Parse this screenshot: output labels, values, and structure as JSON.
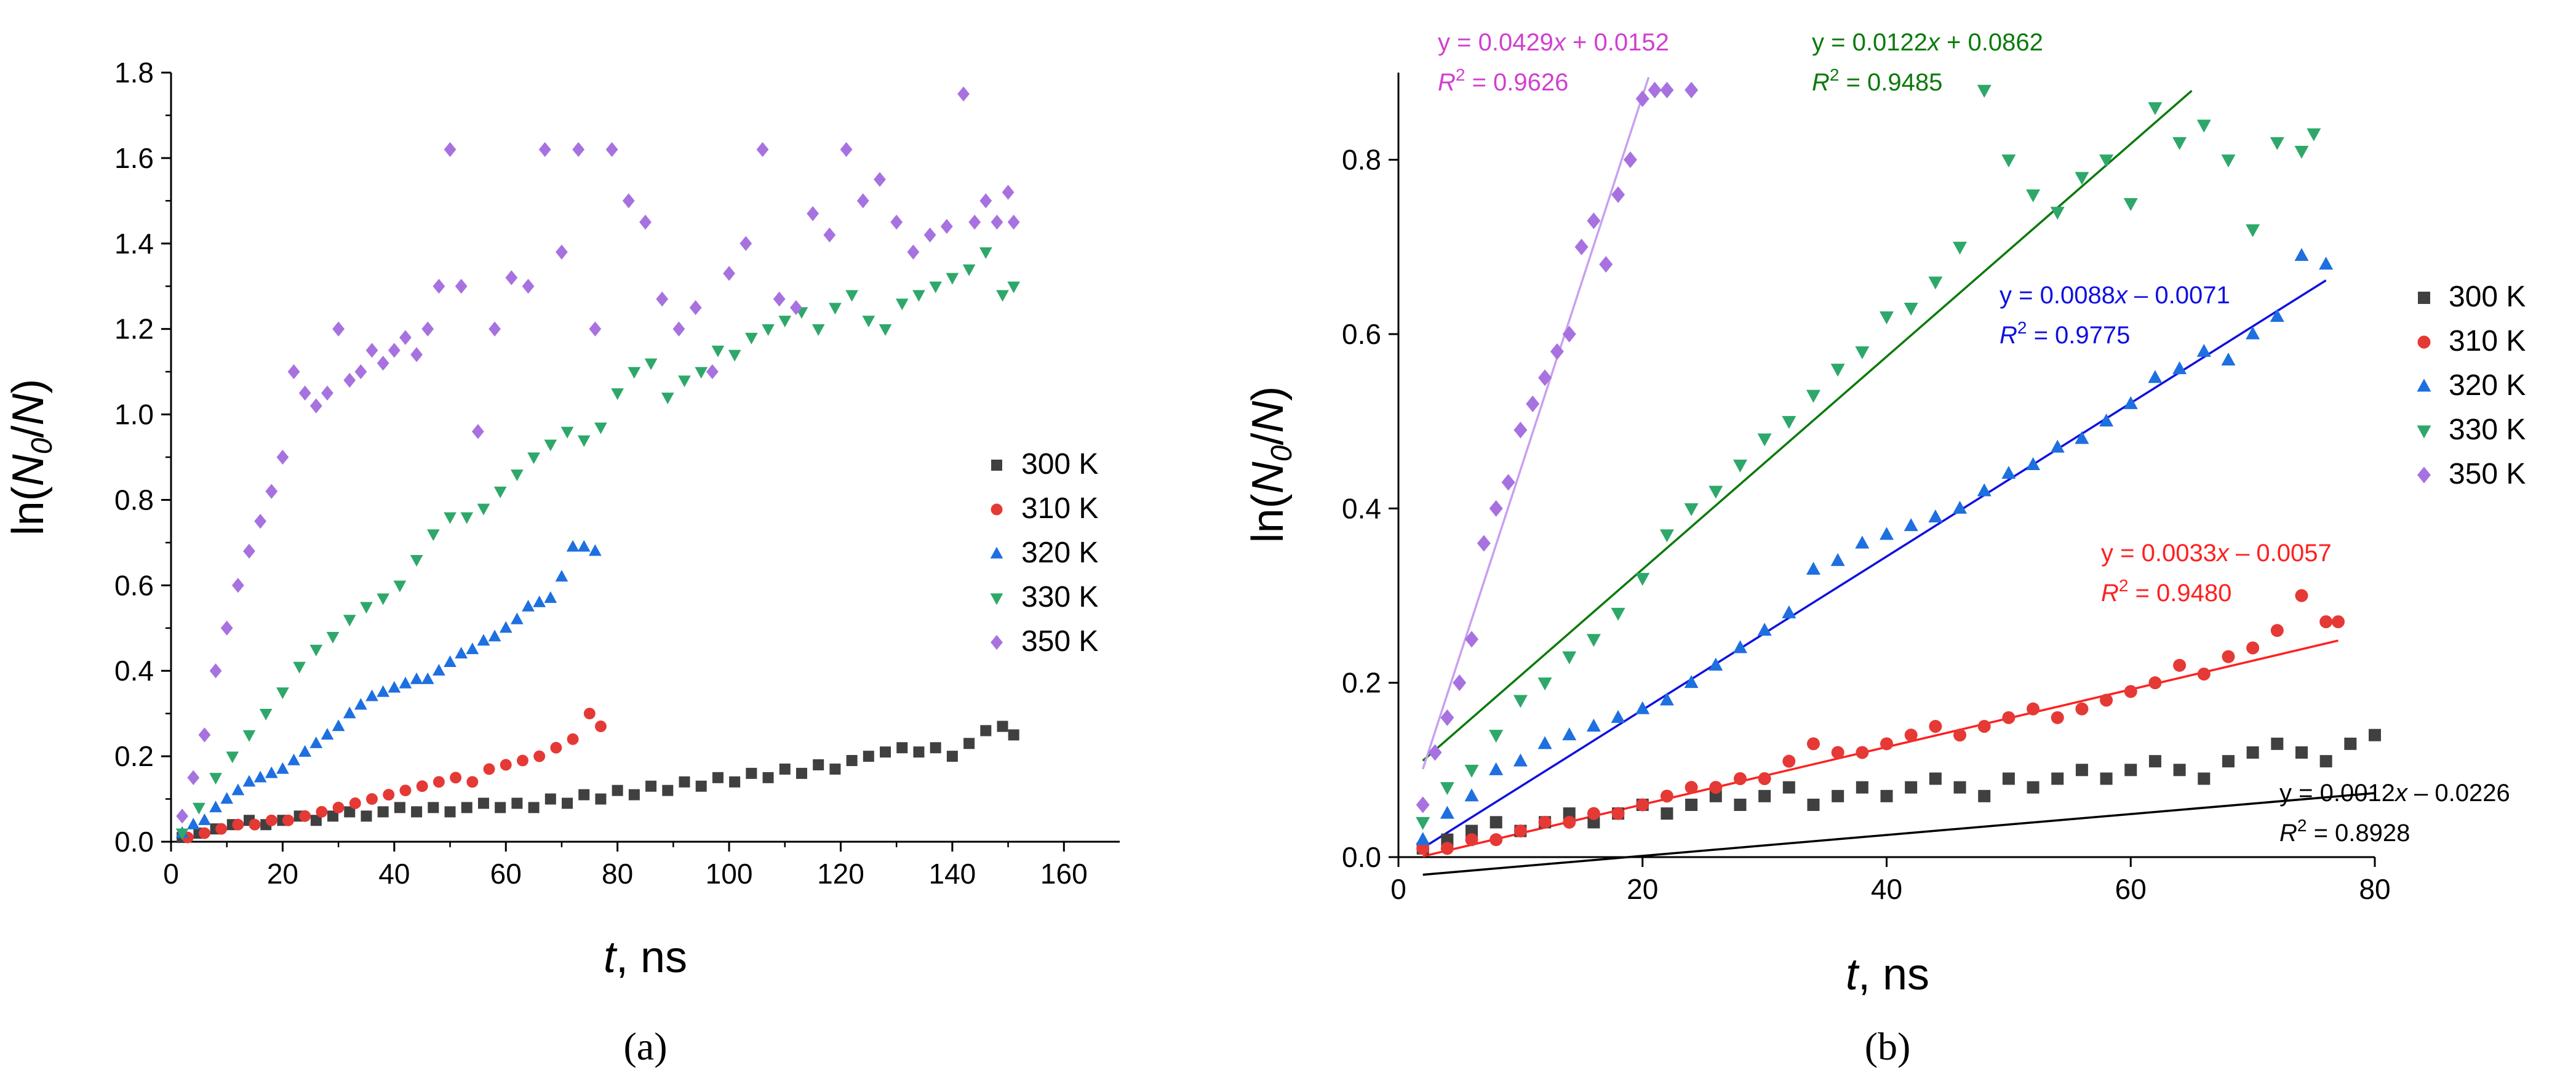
{
  "colors": {
    "300 K": "#404040",
    "310 K": "#e53935",
    "320 K": "#1e6fe0",
    "330 K": "#2ea86a",
    "350 K": "#a772e0",
    "fit_300": "#000000",
    "fit_310": "#ff2020",
    "fit_320": "#1010e0",
    "fit_330": "#0a7a0a",
    "fit_350": "#c8a0f0",
    "eq_300": "#000000",
    "eq_310": "#ff2020",
    "eq_320": "#1010e0",
    "eq_330": "#0a7a0a",
    "eq_350": "#d040d0"
  },
  "chart_data": [
    {
      "type": "scatter",
      "panel_label": "(a)",
      "xlabel_italic": "t",
      "xlabel_rest": ", ns",
      "ylabel": "ln(N0/N)",
      "ylabel_parts": [
        "ln(",
        "N",
        "0",
        "/",
        "N",
        ")"
      ],
      "xlim": [
        0,
        170
      ],
      "ylim": [
        0,
        1.8
      ],
      "xticks": [
        "0",
        "20",
        "40",
        "60",
        "80",
        "100",
        "120",
        "140",
        "160"
      ],
      "yticks": [
        "0.0",
        "0.2",
        "0.4",
        "0.6",
        "0.8",
        "1.0",
        "1.2",
        "1.4",
        "1.6",
        "1.8"
      ],
      "legend": [
        "300 K",
        "310 K",
        "320 K",
        "330 K",
        "350 K"
      ],
      "series": [
        {
          "name": "300 K",
          "marker": "square",
          "x": [
            2,
            5,
            8,
            11,
            14,
            17,
            20,
            23,
            26,
            29,
            32,
            35,
            38,
            41,
            44,
            47,
            50,
            53,
            56,
            59,
            62,
            65,
            68,
            71,
            74,
            77,
            80,
            83,
            86,
            89,
            92,
            95,
            98,
            101,
            104,
            107,
            110,
            113,
            116,
            119,
            122,
            125,
            128,
            131,
            134,
            137,
            140,
            143,
            146,
            149,
            151
          ],
          "y": [
            0.01,
            0.02,
            0.03,
            0.04,
            0.05,
            0.04,
            0.05,
            0.06,
            0.05,
            0.06,
            0.07,
            0.06,
            0.07,
            0.08,
            0.07,
            0.08,
            0.07,
            0.08,
            0.09,
            0.08,
            0.09,
            0.08,
            0.1,
            0.09,
            0.11,
            0.1,
            0.12,
            0.11,
            0.13,
            0.12,
            0.14,
            0.13,
            0.15,
            0.14,
            0.16,
            0.15,
            0.17,
            0.16,
            0.18,
            0.17,
            0.19,
            0.2,
            0.21,
            0.22,
            0.21,
            0.22,
            0.2,
            0.23,
            0.26,
            0.27,
            0.25
          ]
        },
        {
          "name": "310 K",
          "marker": "circle",
          "x": [
            3,
            6,
            9,
            12,
            15,
            18,
            21,
            24,
            27,
            30,
            33,
            36,
            39,
            42,
            45,
            48,
            51,
            54,
            57,
            60,
            63,
            66,
            69,
            72,
            75,
            77
          ],
          "y": [
            0.01,
            0.02,
            0.03,
            0.04,
            0.04,
            0.05,
            0.05,
            0.06,
            0.07,
            0.08,
            0.09,
            0.1,
            0.11,
            0.12,
            0.13,
            0.14,
            0.15,
            0.14,
            0.17,
            0.18,
            0.19,
            0.2,
            0.22,
            0.24,
            0.3,
            0.27
          ]
        },
        {
          "name": "320 K",
          "marker": "triangle-up",
          "x": [
            2,
            4,
            6,
            8,
            10,
            12,
            14,
            16,
            18,
            20,
            22,
            24,
            26,
            28,
            30,
            32,
            34,
            36,
            38,
            40,
            42,
            44,
            46,
            48,
            50,
            52,
            54,
            56,
            58,
            60,
            62,
            64,
            66,
            68,
            70,
            72,
            74,
            76
          ],
          "y": [
            0.02,
            0.04,
            0.05,
            0.08,
            0.1,
            0.12,
            0.14,
            0.15,
            0.16,
            0.17,
            0.19,
            0.21,
            0.23,
            0.25,
            0.27,
            0.3,
            0.32,
            0.34,
            0.35,
            0.36,
            0.37,
            0.38,
            0.38,
            0.4,
            0.42,
            0.44,
            0.45,
            0.47,
            0.48,
            0.5,
            0.52,
            0.55,
            0.56,
            0.57,
            0.62,
            0.69,
            0.69,
            0.68
          ]
        },
        {
          "name": "330 K",
          "marker": "triangle-down",
          "x": [
            2,
            5,
            8,
            11,
            14,
            17,
            20,
            23,
            26,
            29,
            32,
            35,
            38,
            41,
            44,
            47,
            50,
            53,
            56,
            59,
            62,
            65,
            68,
            71,
            74,
            77,
            80,
            83,
            86,
            89,
            92,
            95,
            98,
            101,
            104,
            107,
            110,
            113,
            116,
            119,
            122,
            125,
            128,
            131,
            134,
            137,
            140,
            143,
            146,
            149,
            151
          ],
          "y": [
            0.02,
            0.08,
            0.15,
            0.2,
            0.25,
            0.3,
            0.35,
            0.41,
            0.45,
            0.48,
            0.52,
            0.55,
            0.57,
            0.6,
            0.66,
            0.72,
            0.76,
            0.76,
            0.78,
            0.82,
            0.86,
            0.9,
            0.93,
            0.96,
            0.94,
            0.97,
            1.05,
            1.1,
            1.12,
            1.04,
            1.08,
            1.1,
            1.15,
            1.14,
            1.18,
            1.2,
            1.22,
            1.24,
            1.2,
            1.25,
            1.28,
            1.22,
            1.2,
            1.26,
            1.28,
            1.3,
            1.32,
            1.34,
            1.38,
            1.28,
            1.3
          ]
        },
        {
          "name": "350 K",
          "marker": "diamond",
          "x": [
            2,
            4,
            6,
            8,
            10,
            12,
            14,
            16,
            18,
            20,
            22,
            24,
            26,
            28,
            30,
            32,
            34,
            36,
            38,
            40,
            42,
            44,
            46,
            48,
            50,
            52,
            55,
            58,
            61,
            64,
            67,
            70,
            73,
            76,
            79,
            82,
            85,
            88,
            91,
            94,
            97,
            100,
            103,
            106,
            109,
            112,
            115,
            118,
            121,
            124,
            127,
            130,
            133,
            136,
            139,
            142,
            144,
            146,
            148,
            150,
            151
          ],
          "y": [
            0.06,
            0.15,
            0.25,
            0.4,
            0.5,
            0.6,
            0.68,
            0.75,
            0.82,
            0.9,
            1.1,
            1.05,
            1.02,
            1.05,
            1.2,
            1.08,
            1.1,
            1.15,
            1.12,
            1.15,
            1.18,
            1.14,
            1.2,
            1.3,
            1.62,
            1.3,
            0.96,
            1.2,
            1.32,
            1.3,
            1.62,
            1.38,
            1.62,
            1.2,
            1.62,
            1.5,
            1.45,
            1.27,
            1.2,
            1.25,
            1.1,
            1.33,
            1.4,
            1.62,
            1.27,
            1.25,
            1.47,
            1.42,
            1.62,
            1.5,
            1.55,
            1.45,
            1.38,
            1.42,
            1.44,
            1.75,
            1.45,
            1.5,
            1.45,
            1.52,
            1.45
          ]
        }
      ]
    },
    {
      "type": "scatter",
      "panel_label": "(b)",
      "xlabel_italic": "t",
      "xlabel_rest": ", ns",
      "ylabel": "ln(N0/N)",
      "ylabel_parts": [
        "ln(",
        "N",
        "0",
        "/",
        "N",
        ")"
      ],
      "xlim": [
        0,
        80
      ],
      "ylim": [
        0,
        0.9
      ],
      "xticks": [
        "0",
        "20",
        "40",
        "60",
        "80"
      ],
      "yticks": [
        "0.0",
        "0.2",
        "0.4",
        "0.6",
        "0.8"
      ],
      "legend": [
        "300 K",
        "310 K",
        "320 K",
        "330 K",
        "350 K"
      ],
      "series": [
        {
          "name": "300 K",
          "marker": "square",
          "x": [
            2,
            4,
            6,
            8,
            10,
            12,
            14,
            16,
            18,
            20,
            22,
            24,
            26,
            28,
            30,
            32,
            34,
            36,
            38,
            40,
            42,
            44,
            46,
            48,
            50,
            52,
            54,
            56,
            58,
            60,
            62,
            64,
            66,
            68,
            70,
            72,
            74,
            76,
            78,
            80
          ],
          "y": [
            0.01,
            0.02,
            0.03,
            0.04,
            0.03,
            0.04,
            0.05,
            0.04,
            0.05,
            0.06,
            0.05,
            0.06,
            0.07,
            0.06,
            0.07,
            0.08,
            0.06,
            0.07,
            0.08,
            0.07,
            0.08,
            0.09,
            0.08,
            0.07,
            0.09,
            0.08,
            0.09,
            0.1,
            0.09,
            0.1,
            0.11,
            0.1,
            0.09,
            0.11,
            0.12,
            0.13,
            0.12,
            0.11,
            0.13,
            0.14
          ]
        },
        {
          "name": "310 K",
          "marker": "circle",
          "x": [
            2,
            4,
            6,
            8,
            10,
            12,
            14,
            16,
            18,
            20,
            22,
            24,
            26,
            28,
            30,
            32,
            34,
            36,
            38,
            40,
            42,
            44,
            46,
            48,
            50,
            52,
            54,
            56,
            58,
            60,
            62,
            64,
            66,
            68,
            70,
            72,
            74,
            76,
            77
          ],
          "y": [
            0.01,
            0.01,
            0.02,
            0.02,
            0.03,
            0.04,
            0.04,
            0.05,
            0.05,
            0.06,
            0.07,
            0.08,
            0.08,
            0.09,
            0.09,
            0.11,
            0.13,
            0.12,
            0.12,
            0.13,
            0.14,
            0.15,
            0.14,
            0.15,
            0.16,
            0.17,
            0.16,
            0.17,
            0.18,
            0.19,
            0.2,
            0.22,
            0.21,
            0.23,
            0.24,
            0.26,
            0.3,
            0.27,
            0.27
          ]
        },
        {
          "name": "320 K",
          "marker": "triangle-up",
          "x": [
            2,
            4,
            6,
            8,
            10,
            12,
            14,
            16,
            18,
            20,
            22,
            24,
            26,
            28,
            30,
            32,
            34,
            36,
            38,
            40,
            42,
            44,
            46,
            48,
            50,
            52,
            54,
            56,
            58,
            60,
            62,
            64,
            66,
            68,
            70,
            72,
            74,
            76
          ],
          "y": [
            0.02,
            0.05,
            0.07,
            0.1,
            0.11,
            0.13,
            0.14,
            0.15,
            0.16,
            0.17,
            0.18,
            0.2,
            0.22,
            0.24,
            0.26,
            0.28,
            0.33,
            0.34,
            0.36,
            0.37,
            0.38,
            0.39,
            0.4,
            0.42,
            0.44,
            0.45,
            0.47,
            0.48,
            0.5,
            0.52,
            0.55,
            0.56,
            0.58,
            0.57,
            0.6,
            0.62,
            0.69,
            0.68
          ]
        },
        {
          "name": "330 K",
          "marker": "triangle-down",
          "x": [
            2,
            4,
            6,
            8,
            10,
            12,
            14,
            16,
            18,
            20,
            22,
            24,
            26,
            28,
            30,
            32,
            34,
            36,
            38,
            40,
            42,
            44,
            46,
            48,
            50,
            52,
            54,
            56,
            58,
            60,
            62,
            64,
            66,
            68,
            70,
            72,
            74,
            75
          ],
          "y": [
            0.04,
            0.08,
            0.1,
            0.14,
            0.18,
            0.2,
            0.23,
            0.25,
            0.28,
            0.32,
            0.37,
            0.4,
            0.42,
            0.45,
            0.48,
            0.5,
            0.53,
            0.56,
            0.58,
            0.62,
            0.63,
            0.66,
            0.7,
            0.88,
            0.8,
            0.76,
            0.74,
            0.78,
            0.8,
            0.75,
            0.86,
            0.82,
            0.84,
            0.8,
            0.72,
            0.82,
            0.81,
            0.83
          ]
        },
        {
          "name": "350 K",
          "marker": "diamond",
          "x": [
            2,
            3,
            4,
            5,
            6,
            7,
            8,
            9,
            10,
            11,
            12,
            13,
            14,
            15,
            16,
            17,
            18,
            19,
            20,
            21,
            22,
            24
          ],
          "y": [
            0.06,
            0.12,
            0.16,
            0.2,
            0.25,
            0.36,
            0.4,
            0.43,
            0.49,
            0.52,
            0.55,
            0.58,
            0.6,
            0.7,
            0.73,
            0.68,
            0.76,
            0.8,
            0.87,
            0.88,
            0.88,
            0.88
          ]
        }
      ],
      "fits": [
        {
          "name": "300 K",
          "slope": 0.0012,
          "intercept": -0.0226,
          "x_range": [
            2,
            80
          ],
          "eq_pre": "y = 0.0012",
          "eq_x": "x",
          "eq_post": " – 0.0226",
          "r2_lead": "R",
          "r2_sup": "2",
          "r2_value": " = 0.8928"
        },
        {
          "name": "310 K",
          "slope": 0.0033,
          "intercept": -0.0057,
          "x_range": [
            2,
            77
          ],
          "eq_pre": "y = 0.0033",
          "eq_x": "x",
          "eq_post": " – 0.0057",
          "r2_lead": "R",
          "r2_sup": "2",
          "r2_value": " = 0.9480"
        },
        {
          "name": "320 K",
          "slope": 0.0088,
          "intercept": -0.0071,
          "x_range": [
            2,
            76
          ],
          "eq_pre": "y = 0.0088",
          "eq_x": "x",
          "eq_post": " – 0.0071",
          "r2_lead": "R",
          "r2_sup": "2",
          "r2_value": " = 0.9775"
        },
        {
          "name": "330 K",
          "slope": 0.0122,
          "intercept": 0.0862,
          "x_range": [
            2,
            65
          ],
          "eq_pre": "y = 0.0122",
          "eq_x": "x",
          "eq_post": " + 0.0862",
          "r2_lead": "R",
          "r2_sup": "2",
          "r2_value": " = 0.9485"
        },
        {
          "name": "350 K",
          "slope": 0.0429,
          "intercept": 0.0152,
          "x_range": [
            2,
            20.5
          ],
          "eq_pre": "y = 0.0429",
          "eq_x": "x",
          "eq_post": " + 0.0152",
          "r2_lead": "R",
          "r2_sup": "2",
          "r2_value": " = 0.9626"
        }
      ]
    }
  ]
}
